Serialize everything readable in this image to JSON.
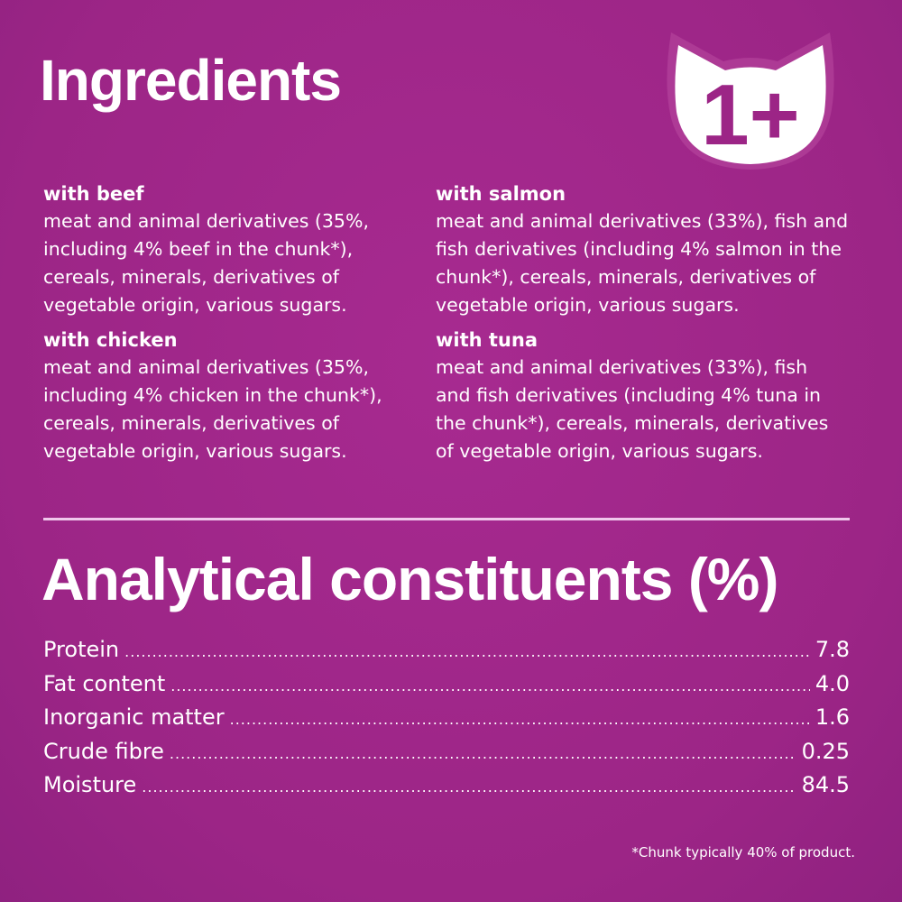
{
  "ingredients": {
    "title": "Ingredients",
    "badge": "1+",
    "left": [
      {
        "heading": "with beef",
        "text": "meat and animal derivatives (35%, including 4% beef in the chunk*), cereals, minerals, derivatives of vegetable origin, various sugars."
      },
      {
        "heading": "with chicken",
        "text": "meat and animal derivatives (35%, including 4% chicken in the chunk*), cereals, minerals, derivatives of vegetable origin, various sugars."
      }
    ],
    "right": [
      {
        "heading": "with salmon",
        "text": "meat and animal derivatives (33%), fish and fish derivatives (including 4% salmon in the chunk*), cereals, minerals, derivatives of vegetable origin, various sugars."
      },
      {
        "heading": "with tuna",
        "text": "meat and animal derivatives (33%), fish and fish derivatives (including 4% tuna in the chunk*), cereals, minerals, derivatives of vegetable origin, various sugars."
      }
    ]
  },
  "analytical": {
    "title": "Analytical constituents (%)",
    "rows": [
      {
        "label": "Protein",
        "value": "7.8"
      },
      {
        "label": "Fat content",
        "value": "4.0"
      },
      {
        "label": "Inorganic matter",
        "value": "1.6"
      },
      {
        "label": "Crude fibre",
        "value": "0.25"
      },
      {
        "label": "Moisture",
        "value": "84.5"
      }
    ]
  },
  "footnote": "*Chunk typically 40% of product.",
  "colors": {
    "background": "#a0288a",
    "text": "#ffffff"
  }
}
